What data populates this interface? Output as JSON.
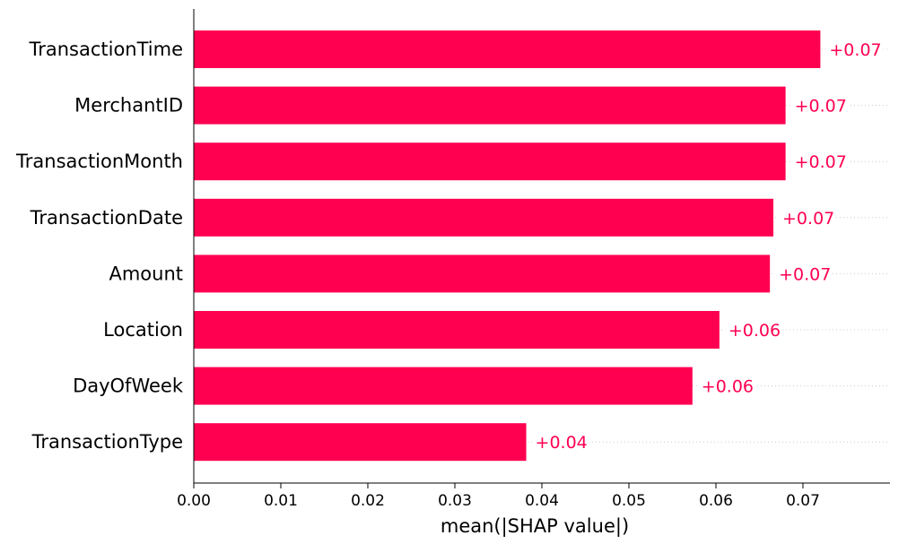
{
  "chart_data": {
    "type": "bar",
    "orientation": "horizontal",
    "categories": [
      "TransactionTime",
      "MerchantID",
      "TransactionMonth",
      "TransactionDate",
      "Amount",
      "Location",
      "DayOfWeek",
      "TransactionType"
    ],
    "values": [
      0.072,
      0.068,
      0.068,
      0.0666,
      0.0662,
      0.0604,
      0.0573,
      0.0382
    ],
    "value_labels": [
      "+0.07",
      "+0.07",
      "+0.07",
      "+0.07",
      "+0.07",
      "+0.06",
      "+0.06",
      "+0.04"
    ],
    "xlabel": "mean(|SHAP value|)",
    "xlim": [
      0.0,
      0.079
    ],
    "xticks": [
      0.0,
      0.01,
      0.02,
      0.03,
      0.04,
      0.05,
      0.06,
      0.07
    ],
    "xtick_labels": [
      "0.00",
      "0.01",
      "0.02",
      "0.03",
      "0.04",
      "0.05",
      "0.06",
      "0.07"
    ],
    "bar_color": "#ff0051",
    "grid": "dotted horizontal guide lines per bar"
  }
}
